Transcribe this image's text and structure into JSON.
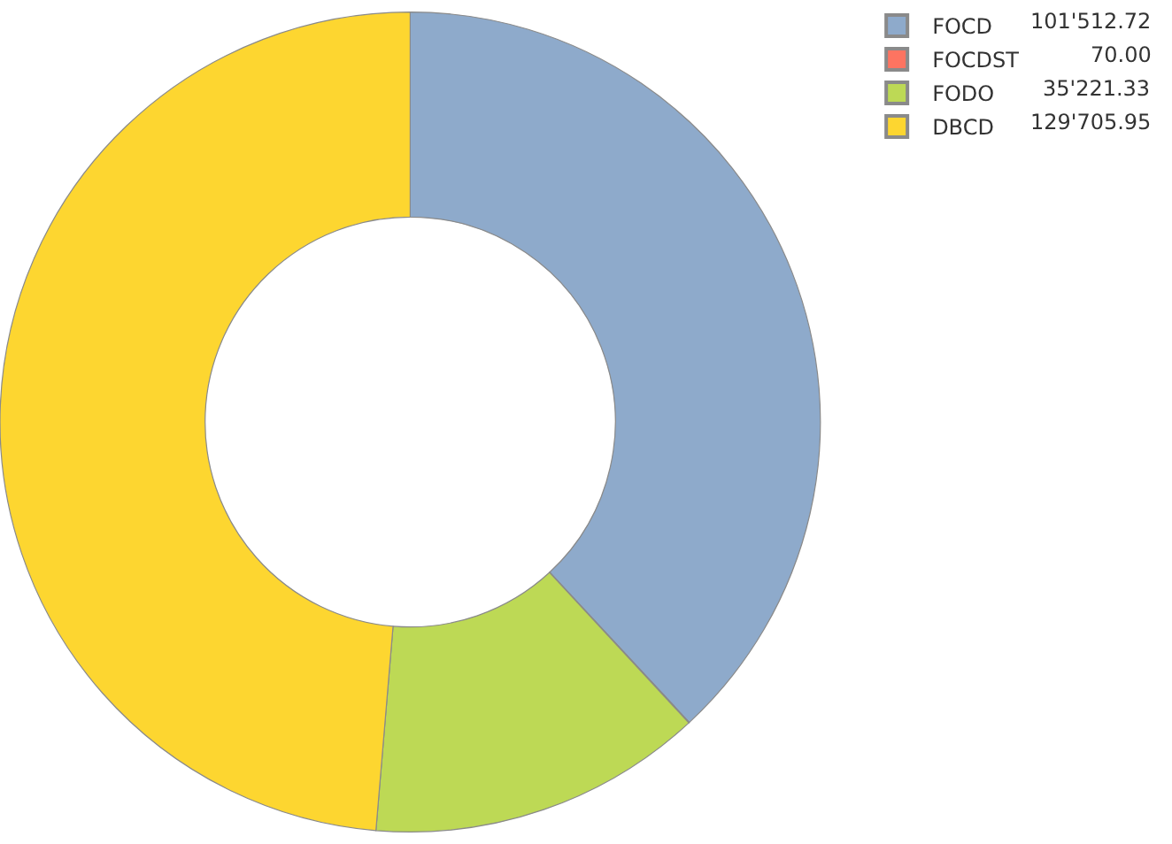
{
  "chart_data": {
    "type": "donut",
    "categories": [
      "FOCD",
      "FOCDST",
      "FODO",
      "DBCD"
    ],
    "values": [
      101512.72,
      70.0,
      35221.33,
      129705.95
    ],
    "value_labels": [
      "101'512.72",
      "70.00",
      "35'221.33",
      "129'705.95"
    ],
    "colors": [
      "#8eaacb",
      "#fd7461",
      "#bdd955",
      "#fdd630"
    ],
    "legend": "top right"
  }
}
